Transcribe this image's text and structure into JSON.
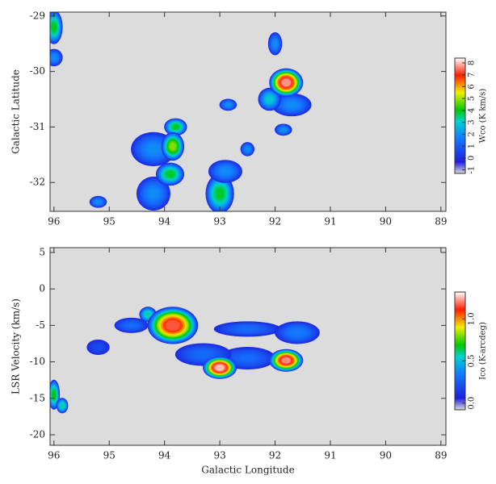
{
  "chart_data": [
    {
      "type": "heatmap",
      "y_label": "Galactic Latitude",
      "x_label": "",
      "colorbar_label": "Wco (K km/s)",
      "xlim": [
        96.07,
        88.91
      ],
      "xticks": [
        96,
        95,
        94,
        93,
        92,
        91,
        90,
        89
      ],
      "ylim": [
        -32.52,
        -28.93
      ],
      "yticks": [
        -29,
        -30,
        -31,
        -32
      ],
      "clim": [
        -1.3,
        8.4
      ],
      "cticks": [
        -1,
        0,
        1,
        2,
        3,
        4,
        5,
        6,
        7,
        8
      ],
      "background": "#dcdcdc",
      "colormap": [
        [
          0,
          "#dcdcdc"
        ],
        [
          0.1,
          "#1e1edc"
        ],
        [
          0.3,
          "#1478ff"
        ],
        [
          0.45,
          "#00d2d2"
        ],
        [
          0.55,
          "#00c800"
        ],
        [
          0.7,
          "#f0f000"
        ],
        [
          0.85,
          "#ff1e00"
        ],
        [
          1,
          "#ffffff"
        ]
      ],
      "points": [
        {
          "x": 96.0,
          "y": -29.2,
          "value": 4,
          "sx": 0.15,
          "sy": 0.3
        },
        {
          "x": 96.0,
          "y": -29.75,
          "value": 2,
          "sx": 0.15,
          "sy": 0.15
        },
        {
          "x": 92.0,
          "y": -29.5,
          "value": 2,
          "sx": 0.12,
          "sy": 0.2
        },
        {
          "x": 91.7,
          "y": -30.6,
          "value": 2,
          "sx": 0.35,
          "sy": 0.2
        },
        {
          "x": 92.1,
          "y": -30.5,
          "value": 3,
          "sx": 0.2,
          "sy": 0.2
        },
        {
          "x": 91.8,
          "y": -30.2,
          "value": 8,
          "sx": 0.3,
          "sy": 0.25
        },
        {
          "x": 92.85,
          "y": -30.6,
          "value": 2,
          "sx": 0.15,
          "sy": 0.1
        },
        {
          "x": 91.85,
          "y": -31.05,
          "value": 2,
          "sx": 0.15,
          "sy": 0.1
        },
        {
          "x": 94.2,
          "y": -31.4,
          "value": 2,
          "sx": 0.4,
          "sy": 0.3
        },
        {
          "x": 94.2,
          "y": -32.2,
          "value": 2,
          "sx": 0.3,
          "sy": 0.3
        },
        {
          "x": 93.8,
          "y": -31.0,
          "value": 4,
          "sx": 0.2,
          "sy": 0.15
        },
        {
          "x": 93.85,
          "y": -31.35,
          "value": 5,
          "sx": 0.2,
          "sy": 0.25
        },
        {
          "x": 93.9,
          "y": -31.85,
          "value": 4,
          "sx": 0.25,
          "sy": 0.2
        },
        {
          "x": 93.0,
          "y": -32.2,
          "value": 4,
          "sx": 0.25,
          "sy": 0.35
        },
        {
          "x": 95.2,
          "y": -32.35,
          "value": 2,
          "sx": 0.15,
          "sy": 0.1
        },
        {
          "x": 92.5,
          "y": -31.4,
          "value": 2,
          "sx": 0.12,
          "sy": 0.12
        },
        {
          "x": 92.9,
          "y": -31.8,
          "value": 2,
          "sx": 0.3,
          "sy": 0.2
        }
      ]
    },
    {
      "type": "heatmap",
      "y_label": "LSR Velocity (km/s)",
      "x_label": "Galactic Longitude",
      "colorbar_label": "Ico (K-arcdeg)",
      "xlim": [
        96.07,
        88.91
      ],
      "xticks": [
        96,
        95,
        94,
        93,
        92,
        91,
        90,
        89
      ],
      "ylim": [
        -21.44,
        5.66
      ],
      "yticks": [
        5,
        0,
        -5,
        -10,
        -15,
        -20
      ],
      "clim": [
        -0.08,
        1.32
      ],
      "cticks": [
        {
          "value": 0,
          "label": "0.0"
        },
        {
          "value": 0.5,
          "label": "0.5"
        },
        {
          "value": 1,
          "label": "1.0"
        }
      ],
      "background": "#dcdcdc",
      "colormap": [
        [
          0,
          "#dcdcdc"
        ],
        [
          0.1,
          "#1e1edc"
        ],
        [
          0.3,
          "#1478ff"
        ],
        [
          0.45,
          "#00d2d2"
        ],
        [
          0.55,
          "#00c800"
        ],
        [
          0.7,
          "#f0f000"
        ],
        [
          0.85,
          "#ff1e00"
        ],
        [
          1,
          "#ffffff"
        ]
      ],
      "points": [
        {
          "x": 92.5,
          "y": -5.5,
          "value": 0.3,
          "sx": 0.6,
          "sy": 1
        },
        {
          "x": 91.6,
          "y": -6,
          "value": 0.35,
          "sx": 0.4,
          "sy": 1.5
        },
        {
          "x": 92.5,
          "y": -9.5,
          "value": 0.3,
          "sx": 0.5,
          "sy": 1.5
        },
        {
          "x": 93.3,
          "y": -9,
          "value": 0.3,
          "sx": 0.5,
          "sy": 1.5
        },
        {
          "x": 95.2,
          "y": -8,
          "value": 0.2,
          "sx": 0.2,
          "sy": 1
        },
        {
          "x": 94.6,
          "y": -5,
          "value": 0.3,
          "sx": 0.3,
          "sy": 1
        },
        {
          "x": 94.3,
          "y": -3.5,
          "value": 0.6,
          "sx": 0.15,
          "sy": 1
        },
        {
          "x": 93.85,
          "y": -5,
          "value": 1.2,
          "sx": 0.45,
          "sy": 2.5
        },
        {
          "x": 93,
          "y": -10.8,
          "value": 1.3,
          "sx": 0.3,
          "sy": 1.5
        },
        {
          "x": 91.8,
          "y": -9.8,
          "value": 1.25,
          "sx": 0.3,
          "sy": 1.5
        },
        {
          "x": 96,
          "y": -14.5,
          "value": 0.7,
          "sx": 0.1,
          "sy": 2
        },
        {
          "x": 95.85,
          "y": -16,
          "value": 0.6,
          "sx": 0.1,
          "sy": 1
        }
      ]
    }
  ]
}
